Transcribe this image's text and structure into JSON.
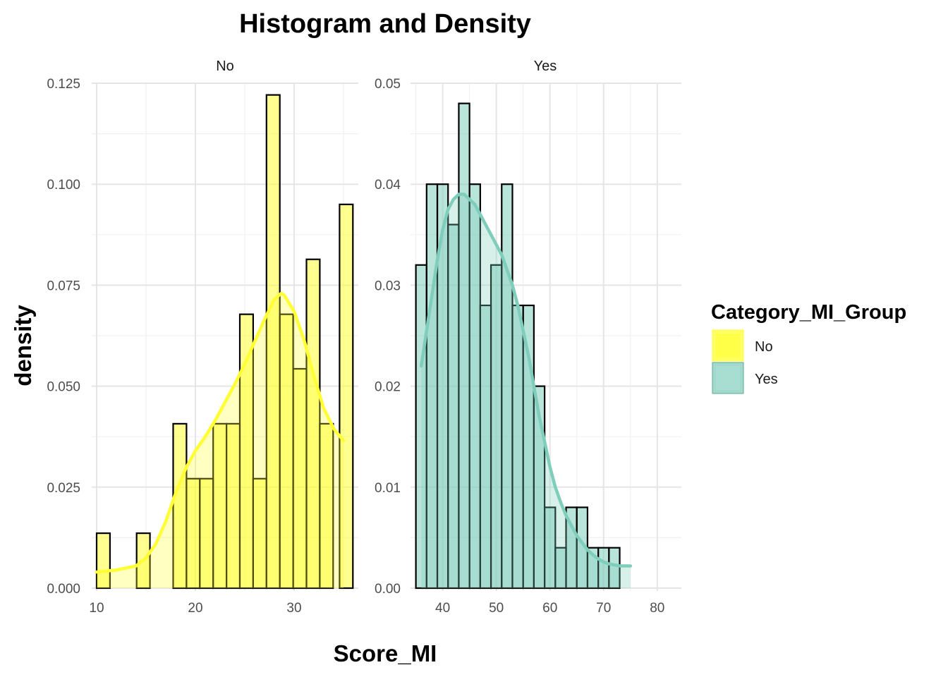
{
  "chart_data": {
    "type": "histogram+density",
    "title": "Histogram and Density",
    "xlabel": "Score_MI",
    "ylabel": "density",
    "grid": true,
    "legend": {
      "title": "Category_MI_Group",
      "placement": "right",
      "entries": [
        {
          "label": "No",
          "color": "#FFFF33"
        },
        {
          "label": "Yes",
          "color": "#7FCDBB"
        }
      ]
    },
    "panels": [
      {
        "strip": "No",
        "color": "#FFFF33",
        "xlim": [
          9.5,
          36.5
        ],
        "ylim": [
          0,
          0.125
        ],
        "x_ticks": [
          10,
          20,
          30
        ],
        "y_ticks": [
          0.0,
          0.025,
          0.05,
          0.075,
          0.1,
          0.125
        ],
        "y_tick_labels": [
          "0.000",
          "0.025",
          "0.050",
          "0.075",
          "0.100",
          "0.125"
        ],
        "bins": [
          {
            "x0": 10.0,
            "x1": 11.35,
            "value": 0.0136
          },
          {
            "x0": 14.05,
            "x1": 15.4,
            "value": 0.0136
          },
          {
            "x0": 17.75,
            "x1": 19.1,
            "value": 0.0407
          },
          {
            "x0": 19.1,
            "x1": 20.45,
            "value": 0.0271
          },
          {
            "x0": 20.45,
            "x1": 21.8,
            "value": 0.0271
          },
          {
            "x0": 21.8,
            "x1": 23.15,
            "value": 0.0407
          },
          {
            "x0": 23.15,
            "x1": 24.5,
            "value": 0.0407
          },
          {
            "x0": 24.5,
            "x1": 25.85,
            "value": 0.0678
          },
          {
            "x0": 25.85,
            "x1": 27.2,
            "value": 0.0271
          },
          {
            "x0": 27.2,
            "x1": 28.55,
            "value": 0.1221
          },
          {
            "x0": 28.55,
            "x1": 29.9,
            "value": 0.0678
          },
          {
            "x0": 29.9,
            "x1": 31.25,
            "value": 0.0543
          },
          {
            "x0": 31.25,
            "x1": 32.6,
            "value": 0.0814
          },
          {
            "x0": 32.6,
            "x1": 33.95,
            "value": 0.0407
          },
          {
            "x0": 34.6,
            "x1": 35.95,
            "value": 0.095
          }
        ],
        "density": {
          "x": [
            10,
            12,
            14,
            15,
            16,
            17,
            18,
            19,
            20,
            21,
            22,
            23,
            24,
            25,
            26,
            27,
            28,
            28.7,
            29,
            30,
            31,
            32,
            33,
            34,
            35
          ],
          "y": [
            0.004,
            0.0045,
            0.0055,
            0.0075,
            0.011,
            0.0165,
            0.0235,
            0.0295,
            0.034,
            0.0375,
            0.0415,
            0.046,
            0.0505,
            0.0555,
            0.061,
            0.0665,
            0.0715,
            0.073,
            0.0725,
            0.0685,
            0.0615,
            0.0525,
            0.0445,
            0.0395,
            0.0365
          ]
        }
      },
      {
        "strip": "Yes",
        "color": "#7FCDBB",
        "xlim": [
          34,
          84.5
        ],
        "ylim": [
          0,
          0.05
        ],
        "x_ticks": [
          40,
          50,
          60,
          70,
          80
        ],
        "y_ticks": [
          0.0,
          0.01,
          0.02,
          0.03,
          0.04,
          0.05
        ],
        "y_tick_labels": [
          "0.00",
          "0.01",
          "0.02",
          "0.03",
          "0.04",
          "0.05"
        ],
        "bins": [
          {
            "x0": 35.0,
            "x1": 37.0,
            "value": 0.032
          },
          {
            "x0": 37.0,
            "x1": 39.0,
            "value": 0.04
          },
          {
            "x0": 39.0,
            "x1": 41.0,
            "value": 0.04
          },
          {
            "x0": 41.0,
            "x1": 43.0,
            "value": 0.036
          },
          {
            "x0": 43.0,
            "x1": 45.0,
            "value": 0.048
          },
          {
            "x0": 45.0,
            "x1": 47.0,
            "value": 0.04
          },
          {
            "x0": 47.0,
            "x1": 49.0,
            "value": 0.028
          },
          {
            "x0": 49.0,
            "x1": 51.0,
            "value": 0.032
          },
          {
            "x0": 51.0,
            "x1": 53.0,
            "value": 0.04
          },
          {
            "x0": 53.0,
            "x1": 55.0,
            "value": 0.028
          },
          {
            "x0": 55.0,
            "x1": 57.0,
            "value": 0.028
          },
          {
            "x0": 57.0,
            "x1": 59.0,
            "value": 0.02
          },
          {
            "x0": 59.0,
            "x1": 61.0,
            "value": 0.008
          },
          {
            "x0": 61.0,
            "x1": 63.0,
            "value": 0.004
          },
          {
            "x0": 63.0,
            "x1": 65.0,
            "value": 0.008
          },
          {
            "x0": 65.0,
            "x1": 67.0,
            "value": 0.008
          },
          {
            "x0": 67.0,
            "x1": 69.0,
            "value": 0.004
          },
          {
            "x0": 69.0,
            "x1": 71.0,
            "value": 0.004
          },
          {
            "x0": 71.0,
            "x1": 73.0,
            "value": 0.004
          }
        ],
        "density": {
          "x": [
            36,
            37,
            38,
            39,
            40,
            41,
            42,
            43,
            44,
            45,
            46,
            47,
            48,
            49,
            50,
            51,
            52,
            53,
            54,
            55,
            56,
            57,
            58,
            59,
            60,
            61,
            62,
            63,
            64,
            65,
            66,
            67,
            68,
            69,
            70,
            71,
            72,
            73,
            74,
            75
          ],
          "y": [
            0.022,
            0.0255,
            0.029,
            0.0325,
            0.0355,
            0.0375,
            0.0385,
            0.039,
            0.039,
            0.0385,
            0.038,
            0.037,
            0.036,
            0.035,
            0.034,
            0.033,
            0.0315,
            0.03,
            0.028,
            0.0255,
            0.023,
            0.02,
            0.017,
            0.0145,
            0.012,
            0.01,
            0.0085,
            0.0072,
            0.0062,
            0.0052,
            0.0045,
            0.0038,
            0.0033,
            0.0029,
            0.0026,
            0.0024,
            0.0023,
            0.0022,
            0.0022,
            0.0022
          ]
        }
      }
    ]
  }
}
